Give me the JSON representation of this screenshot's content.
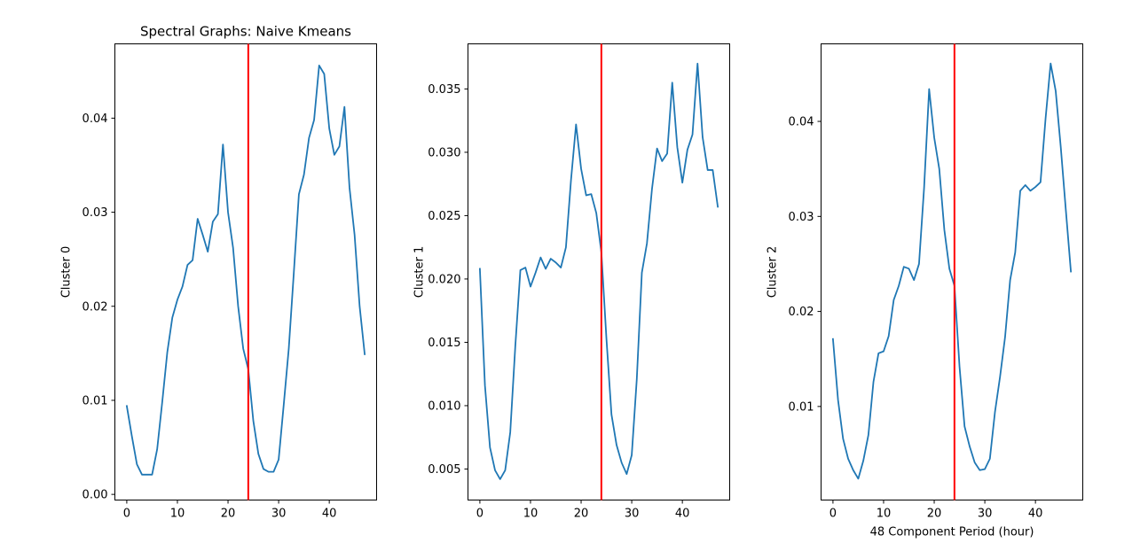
{
  "chart_data": [
    {
      "type": "line",
      "title": "Spectral Graphs: Naive Kmeans",
      "xlabel": "",
      "ylabel": "Cluster 0",
      "xlim": [
        -2.35,
        49.35
      ],
      "ylim": [
        -0.0006,
        0.0479
      ],
      "xticks": [
        0,
        10,
        20,
        30,
        40
      ],
      "yticks": [
        0.0,
        0.01,
        0.02,
        0.03,
        0.04
      ],
      "ytick_labels": [
        "0.00",
        "0.01",
        "0.02",
        "0.03",
        "0.04"
      ],
      "vline_x": 24,
      "series_color": "#1f77b4",
      "vline_color": "#ff0000",
      "x": [
        0,
        1,
        2,
        3,
        4,
        5,
        6,
        7,
        8,
        9,
        10,
        11,
        12,
        13,
        14,
        15,
        16,
        17,
        18,
        19,
        20,
        21,
        22,
        23,
        24,
        25,
        26,
        27,
        28,
        29,
        30,
        31,
        32,
        33,
        34,
        35,
        36,
        37,
        38,
        39,
        40,
        41,
        42,
        43,
        44,
        45,
        46,
        47
      ],
      "values": [
        0.0094,
        0.0062,
        0.0032,
        0.0021,
        0.0021,
        0.0021,
        0.0048,
        0.0098,
        0.0151,
        0.0188,
        0.0207,
        0.0221,
        0.0244,
        0.0249,
        0.0293,
        0.0276,
        0.0258,
        0.029,
        0.0298,
        0.0372,
        0.03,
        0.0262,
        0.02,
        0.0155,
        0.0133,
        0.0078,
        0.0043,
        0.0027,
        0.0024,
        0.0024,
        0.0037,
        0.0095,
        0.0155,
        0.0236,
        0.0319,
        0.034,
        0.0379,
        0.0398,
        0.0456,
        0.0447,
        0.0389,
        0.0361,
        0.037,
        0.0412,
        0.0326,
        0.0276,
        0.02,
        0.0149
      ]
    },
    {
      "type": "line",
      "title": "",
      "xlabel": "",
      "ylabel": "Cluster 1",
      "xlim": [
        -2.35,
        49.35
      ],
      "ylim": [
        0.00255,
        0.03856
      ],
      "xticks": [
        0,
        10,
        20,
        30,
        40
      ],
      "yticks": [
        0.005,
        0.01,
        0.015,
        0.02,
        0.025,
        0.03,
        0.035
      ],
      "ytick_labels": [
        "0.005",
        "0.010",
        "0.015",
        "0.020",
        "0.025",
        "0.030",
        "0.035"
      ],
      "vline_x": 24,
      "series_color": "#1f77b4",
      "vline_color": "#ff0000",
      "x": [
        0,
        1,
        2,
        3,
        4,
        5,
        6,
        7,
        8,
        9,
        10,
        11,
        12,
        13,
        14,
        15,
        16,
        17,
        18,
        19,
        20,
        21,
        22,
        23,
        24,
        25,
        26,
        27,
        28,
        29,
        30,
        31,
        32,
        33,
        34,
        35,
        36,
        37,
        38,
        39,
        40,
        41,
        42,
        43,
        44,
        45,
        46,
        47
      ],
      "values": [
        0.0208,
        0.0116,
        0.0067,
        0.0049,
        0.0042,
        0.0049,
        0.0079,
        0.0147,
        0.0207,
        0.0209,
        0.0194,
        0.0205,
        0.0217,
        0.0208,
        0.0216,
        0.0213,
        0.0209,
        0.0225,
        0.0278,
        0.0322,
        0.0287,
        0.0266,
        0.0267,
        0.0252,
        0.0221,
        0.0153,
        0.0093,
        0.0069,
        0.0055,
        0.0046,
        0.0061,
        0.0121,
        0.0205,
        0.0228,
        0.0271,
        0.0303,
        0.0293,
        0.0299,
        0.0355,
        0.0304,
        0.0276,
        0.0302,
        0.0314,
        0.037,
        0.0312,
        0.0286,
        0.0286,
        0.0257
      ]
    },
    {
      "type": "line",
      "title": "",
      "xlabel": "48 Component Period (hour)",
      "ylabel": "Cluster 2",
      "xlim": [
        -2.35,
        49.35
      ],
      "ylim": [
        0.000153,
        0.04816
      ],
      "xticks": [
        0,
        10,
        20,
        30,
        40
      ],
      "yticks": [
        0.01,
        0.02,
        0.03,
        0.04
      ],
      "ytick_labels": [
        "0.01",
        "0.02",
        "0.03",
        "0.04"
      ],
      "vline_x": 24,
      "series_color": "#1f77b4",
      "vline_color": "#ff0000",
      "x": [
        0,
        1,
        2,
        3,
        4,
        5,
        6,
        7,
        8,
        9,
        10,
        11,
        12,
        13,
        14,
        15,
        16,
        17,
        18,
        19,
        20,
        21,
        22,
        23,
        24,
        25,
        26,
        27,
        28,
        29,
        30,
        31,
        32,
        33,
        34,
        35,
        36,
        37,
        38,
        39,
        40,
        41,
        42,
        43,
        44,
        45,
        46,
        47
      ],
      "values": [
        0.0171,
        0.0107,
        0.0066,
        0.0045,
        0.0033,
        0.0024,
        0.0043,
        0.007,
        0.0126,
        0.0156,
        0.0158,
        0.0174,
        0.0212,
        0.0227,
        0.0247,
        0.0245,
        0.0233,
        0.025,
        0.033,
        0.0434,
        0.0383,
        0.035,
        0.0286,
        0.0245,
        0.0227,
        0.0142,
        0.0079,
        0.0058,
        0.0041,
        0.0033,
        0.0034,
        0.0045,
        0.0094,
        0.0131,
        0.0173,
        0.0233,
        0.0262,
        0.0327,
        0.0333,
        0.0327,
        0.0331,
        0.0336,
        0.0403,
        0.0461,
        0.0432,
        0.0373,
        0.0307,
        0.0242
      ]
    }
  ]
}
